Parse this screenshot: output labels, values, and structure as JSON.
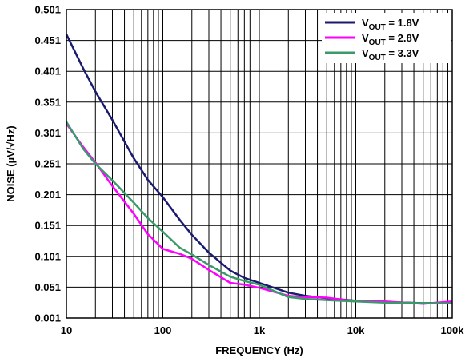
{
  "chart_data": {
    "type": "line",
    "xlabel": "FREQUENCY (Hz)",
    "ylabel": "NOISE (µV/√Hz)",
    "xscale": "log",
    "xlim": [
      10,
      100000
    ],
    "ylim": [
      0.001,
      0.501
    ],
    "x_ticks": [
      10,
      100,
      1000,
      10000,
      100000
    ],
    "x_tick_labels": [
      "10",
      "100",
      "1k",
      "10k",
      "100k"
    ],
    "y_ticks": [
      0.001,
      0.051,
      0.101,
      0.151,
      0.201,
      0.251,
      0.301,
      0.351,
      0.401,
      0.451,
      0.501
    ],
    "y_tick_labels": [
      "0.001",
      "0.051",
      "0.101",
      "0.151",
      "0.201",
      "0.251",
      "0.301",
      "0.351",
      "0.401",
      "0.451",
      "0.501"
    ],
    "grid": {
      "x_minor": true,
      "y_major": true
    },
    "legend_position": "top-right",
    "series": [
      {
        "name": "VOUT = 1.8V",
        "legend": {
          "base": "V",
          "sub": "OUT",
          "rest": " = 1.8V"
        },
        "color": "#1a1a6e",
        "x": [
          10,
          15,
          20,
          30,
          50,
          70,
          100,
          150,
          200,
          300,
          500,
          700,
          1000,
          2000,
          3000,
          5000,
          10000,
          20000,
          50000,
          100000
        ],
        "y": [
          0.461,
          0.405,
          0.368,
          0.322,
          0.26,
          0.225,
          0.197,
          0.16,
          0.136,
          0.107,
          0.078,
          0.066,
          0.058,
          0.042,
          0.037,
          0.033,
          0.029,
          0.027,
          0.025,
          0.026
        ]
      },
      {
        "name": "VOUT = 2.8V",
        "legend": {
          "base": "V",
          "sub": "OUT",
          "rest": " = 2.8V"
        },
        "color": "#ff00ff",
        "x": [
          10,
          15,
          20,
          30,
          50,
          70,
          100,
          150,
          200,
          300,
          500,
          700,
          1000,
          2000,
          3000,
          5000,
          10000,
          20000,
          50000,
          100000
        ],
        "y": [
          0.316,
          0.278,
          0.253,
          0.215,
          0.17,
          0.137,
          0.113,
          0.105,
          0.097,
          0.079,
          0.058,
          0.055,
          0.05,
          0.037,
          0.035,
          0.034,
          0.028,
          0.028,
          0.024,
          0.028
        ]
      },
      {
        "name": "VOUT = 3.3V",
        "legend": {
          "base": "V",
          "sub": "OUT",
          "rest": " = 3.3V"
        },
        "color": "#3a9a6a",
        "x": [
          10,
          15,
          20,
          30,
          50,
          70,
          100,
          150,
          200,
          300,
          500,
          700,
          1000,
          2000,
          3000,
          5000,
          10000,
          20000,
          50000,
          100000
        ],
        "y": [
          0.319,
          0.275,
          0.251,
          0.224,
          0.188,
          0.163,
          0.141,
          0.115,
          0.104,
          0.087,
          0.068,
          0.061,
          0.055,
          0.035,
          0.032,
          0.03,
          0.028,
          0.026,
          0.025,
          0.025
        ]
      }
    ]
  }
}
